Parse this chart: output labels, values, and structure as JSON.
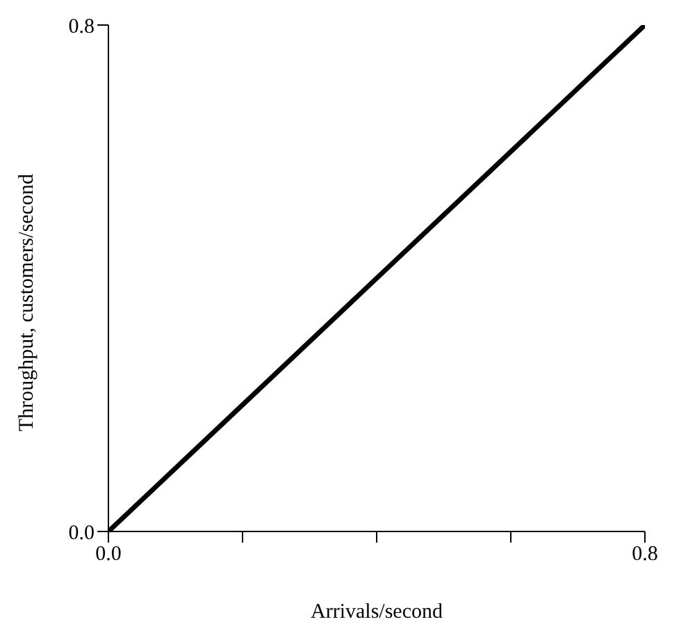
{
  "chart_data": {
    "type": "line",
    "xlabel": "Arrivals/second",
    "ylabel": "Throughput, customers/second",
    "x": [
      0,
      0.8
    ],
    "series": [
      {
        "color": "#000000",
        "values": [
          0,
          0.8
        ]
      }
    ],
    "xlim": [
      0,
      0.8
    ],
    "ylim": [
      0,
      0.8
    ],
    "xticks": [
      {
        "value": 0,
        "label": "0.0"
      },
      {
        "value": 0.2,
        "label": null
      },
      {
        "value": 0.4,
        "label": null
      },
      {
        "value": 0.6,
        "label": null
      },
      {
        "value": 0.8,
        "label": "0.8"
      }
    ],
    "yticks": [
      {
        "value": 0,
        "label": "0.0"
      },
      {
        "value": 0.8,
        "label": "0.8"
      }
    ],
    "grid": false,
    "legend": false,
    "marker": "none",
    "line_style": "solid"
  }
}
